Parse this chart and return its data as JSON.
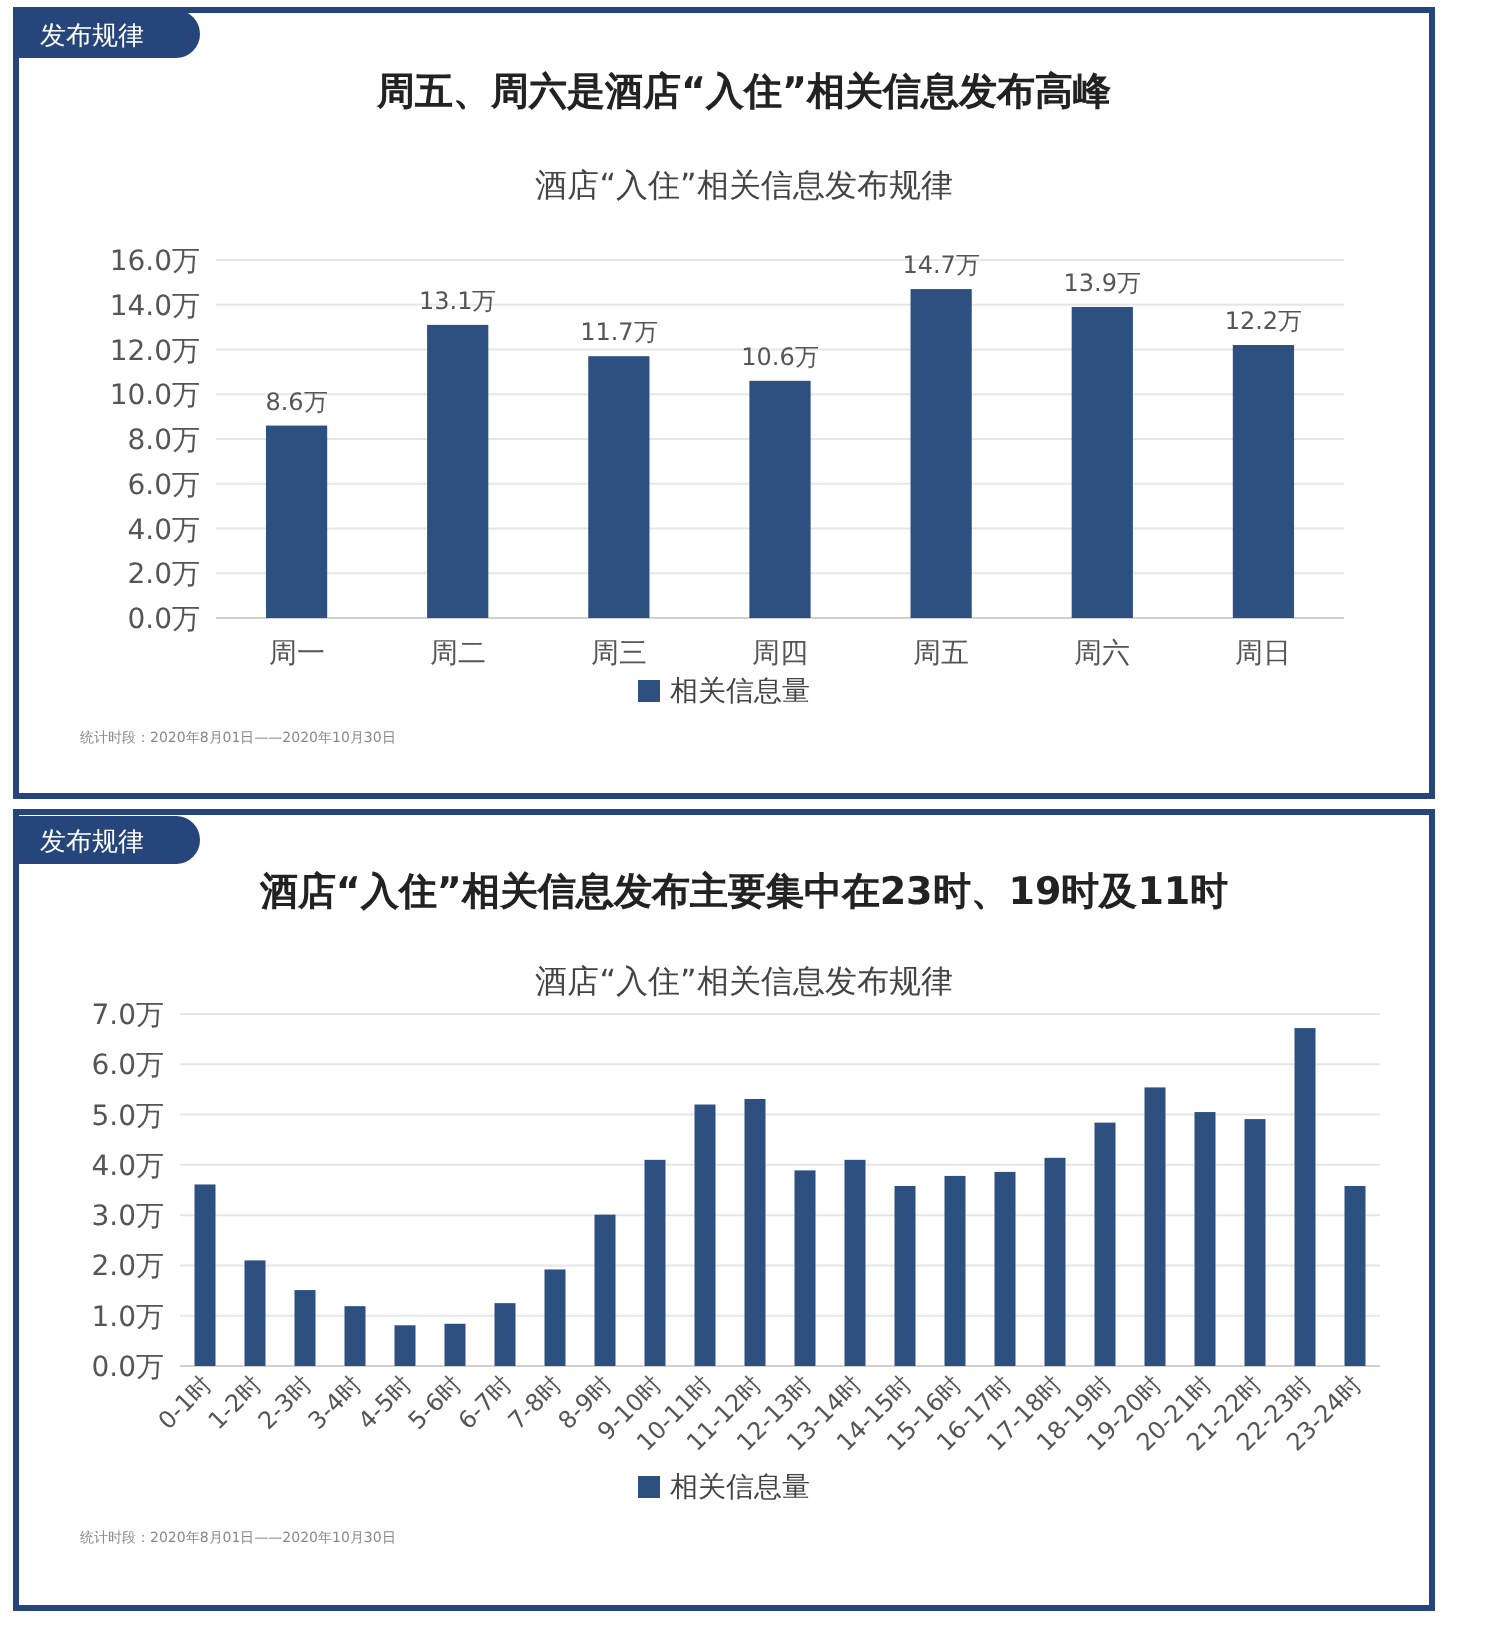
{
  "chart_data": [
    {
      "type": "bar",
      "title": "周五、周六是酒店“入住”相关信息发布高峰",
      "subtitle": "酒店“入住”相关信息发布规律",
      "annotations": [
        "发布规律",
        "统计时段：2020年8月01日——2020年10月30日"
      ],
      "categories": [
        "周一",
        "周二",
        "周三",
        "周四",
        "周五",
        "周六",
        "周日"
      ],
      "series": [
        {
          "name": "相关信息量",
          "color": "#2d5080",
          "values": [
            8.6,
            13.1,
            11.7,
            10.6,
            14.7,
            13.9,
            12.2
          ],
          "value_labels": [
            "8.6万",
            "13.1万",
            "11.7万",
            "10.6万",
            "14.7万",
            "13.9万",
            "12.2万"
          ]
        }
      ],
      "ylim": [
        0,
        16
      ],
      "yticks": [
        {
          "value": 0,
          "label": "0.0万"
        },
        {
          "value": 2,
          "label": "2.0万"
        },
        {
          "value": 4,
          "label": "4.0万"
        },
        {
          "value": 6,
          "label": "6.0万"
        },
        {
          "value": 8,
          "label": "8.0万"
        },
        {
          "value": 10,
          "label": "10.0万"
        },
        {
          "value": 12,
          "label": "12.0万"
        },
        {
          "value": 14,
          "label": "14.0万"
        },
        {
          "value": 16,
          "label": "16.0万"
        }
      ],
      "grid": "y",
      "legend": "bottom"
    },
    {
      "type": "bar",
      "title": "酒店“入住”相关信息发布主要集中在23时、19时及11时",
      "subtitle": "酒店“入住”相关信息发布规律",
      "annotations": [
        "发布规律",
        "统计时段：2020年8月01日——2020年10月30日"
      ],
      "categories": [
        "0-1时",
        "1-2时",
        "2-3时",
        "3-4时",
        "4-5时",
        "5-6时",
        "6-7时",
        "7-8时",
        "8-9时",
        "9-10时",
        "10-11时",
        "11-12时",
        "12-13时",
        "13-14时",
        "14-15时",
        "15-16时",
        "16-17时",
        "17-18时",
        "18-19时",
        "19-20时",
        "20-21时",
        "21-22时",
        "22-23时",
        "23-24时"
      ],
      "series": [
        {
          "name": "相关信息量",
          "color": "#2d5080",
          "values": [
            3.61,
            2.1,
            1.51,
            1.19,
            0.81,
            0.84,
            1.25,
            1.92,
            3.01,
            4.1,
            5.2,
            5.31,
            3.89,
            4.1,
            3.58,
            3.78,
            3.86,
            4.14,
            4.84,
            5.54,
            5.05,
            4.91,
            6.72,
            3.58
          ]
        }
      ],
      "ylim": [
        0,
        7
      ],
      "yticks": [
        {
          "value": 0,
          "label": "0.0万"
        },
        {
          "value": 1,
          "label": "1.0万"
        },
        {
          "value": 2,
          "label": "2.0万"
        },
        {
          "value": 3,
          "label": "3.0万"
        },
        {
          "value": 4,
          "label": "4.0万"
        },
        {
          "value": 5,
          "label": "5.0万"
        },
        {
          "value": 6,
          "label": "6.0万"
        },
        {
          "value": 7,
          "label": "7.0万"
        }
      ],
      "grid": "y",
      "legend": "bottom"
    }
  ]
}
